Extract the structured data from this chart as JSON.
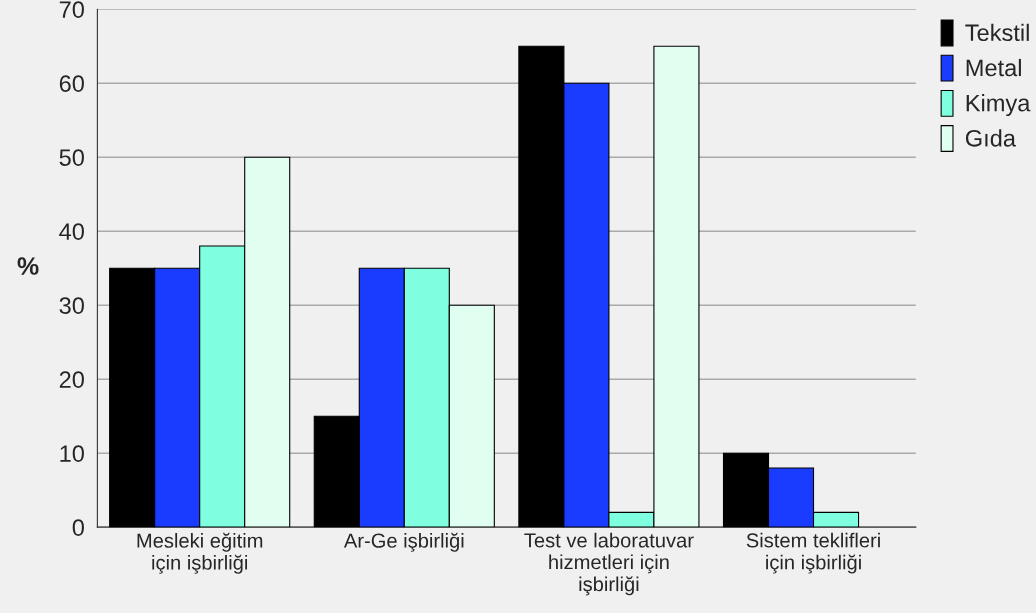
{
  "chart_data": {
    "type": "bar",
    "ylabel": "%",
    "categories": [
      "Mesleki eğitim\niçin işbirliği",
      "Ar-Ge işbirliği",
      "Test ve laboratuvar\nhizmetleri için\nişbirliği",
      "Sistem teklifleri\niçin işbirliği"
    ],
    "series": [
      {
        "name": "Tekstil",
        "color": "#000000",
        "values": [
          35,
          15,
          65,
          10
        ]
      },
      {
        "name": "Metal",
        "color": "#1a3cff",
        "values": [
          35,
          35,
          60,
          8
        ]
      },
      {
        "name": "Kimya",
        "color": "#7fffe0",
        "values": [
          38,
          35,
          2,
          2
        ]
      },
      {
        "name": "Gıda",
        "color": "#e0fff0",
        "values": [
          50,
          30,
          65,
          null
        ]
      }
    ],
    "ylim": [
      0,
      70
    ],
    "yticks": [
      0,
      10,
      20,
      30,
      40,
      50,
      60,
      70
    ],
    "grid": "y",
    "legend": "top right"
  }
}
